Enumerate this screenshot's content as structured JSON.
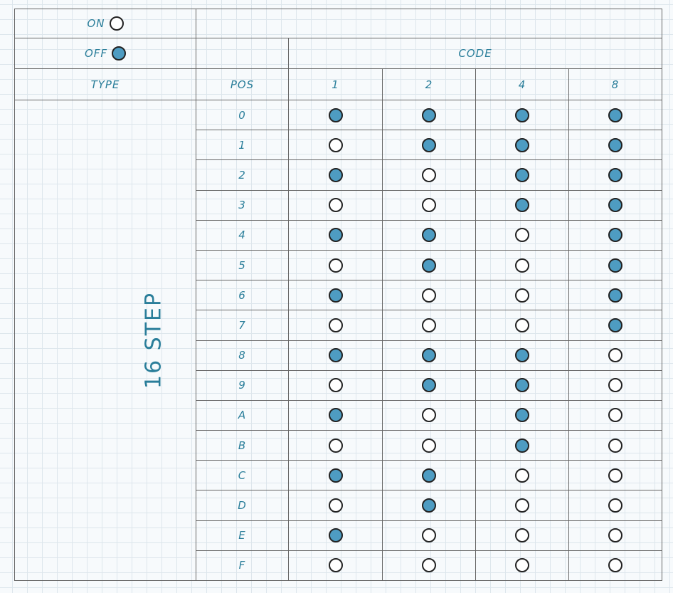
{
  "legend": {
    "on_label": "ON",
    "off_label": "OFF"
  },
  "header": {
    "code_label": "CODE",
    "type_label": "TYPE",
    "pos_label": "POS",
    "bits": [
      "1",
      "2",
      "4",
      "8"
    ]
  },
  "type_value": "16 STEP",
  "colors": {
    "text": "#2a7e9a",
    "off_fill": "#4e9cc2",
    "on_fill": "#ffffff"
  },
  "rows": [
    {
      "pos": "0",
      "states": [
        "off",
        "off",
        "off",
        "off"
      ]
    },
    {
      "pos": "1",
      "states": [
        "on",
        "off",
        "off",
        "off"
      ]
    },
    {
      "pos": "2",
      "states": [
        "off",
        "on",
        "off",
        "off"
      ]
    },
    {
      "pos": "3",
      "states": [
        "on",
        "on",
        "off",
        "off"
      ]
    },
    {
      "pos": "4",
      "states": [
        "off",
        "off",
        "on",
        "off"
      ]
    },
    {
      "pos": "5",
      "states": [
        "on",
        "off",
        "on",
        "off"
      ]
    },
    {
      "pos": "6",
      "states": [
        "off",
        "on",
        "on",
        "off"
      ]
    },
    {
      "pos": "7",
      "states": [
        "on",
        "on",
        "on",
        "off"
      ]
    },
    {
      "pos": "8",
      "states": [
        "off",
        "off",
        "off",
        "on"
      ]
    },
    {
      "pos": "9",
      "states": [
        "on",
        "off",
        "off",
        "on"
      ]
    },
    {
      "pos": "A",
      "states": [
        "off",
        "on",
        "off",
        "on"
      ]
    },
    {
      "pos": "B",
      "states": [
        "on",
        "on",
        "off",
        "on"
      ]
    },
    {
      "pos": "C",
      "states": [
        "off",
        "off",
        "on",
        "on"
      ]
    },
    {
      "pos": "D",
      "states": [
        "on",
        "off",
        "on",
        "on"
      ]
    },
    {
      "pos": "E",
      "states": [
        "off",
        "on",
        "on",
        "on"
      ]
    },
    {
      "pos": "F",
      "states": [
        "on",
        "on",
        "on",
        "on"
      ]
    }
  ]
}
